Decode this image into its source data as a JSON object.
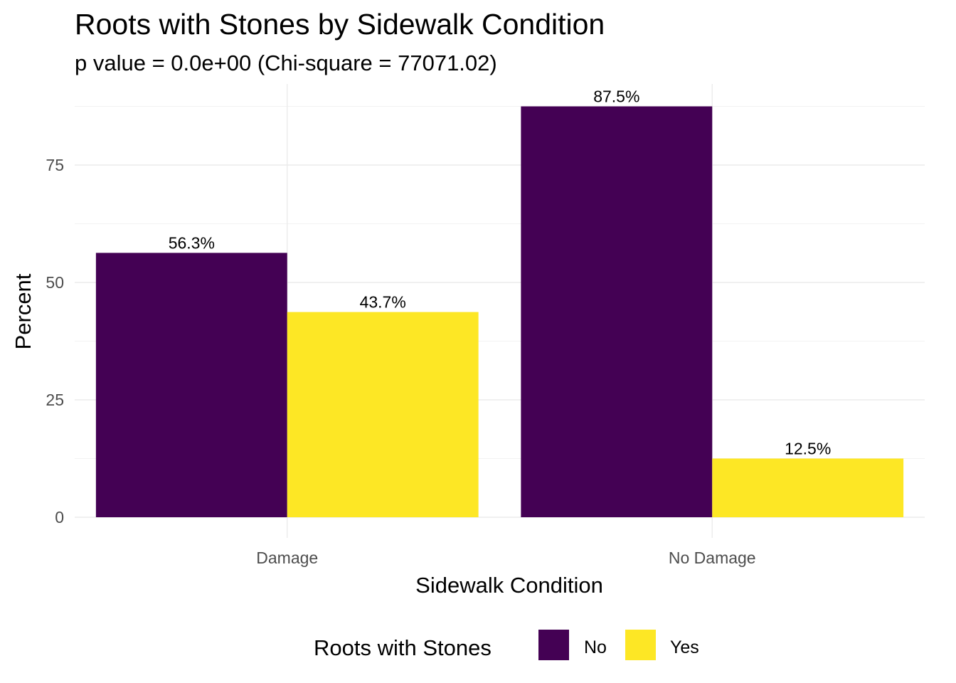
{
  "chart_data": {
    "type": "bar",
    "title": "Roots with Stones by Sidewalk Condition",
    "subtitle": "p value = 0.0e+00 (Chi-square = 77071.02)",
    "xlabel": "Sidewalk Condition",
    "ylabel": "Percent",
    "categories": [
      "Damage",
      "No Damage"
    ],
    "series": [
      {
        "name": "No",
        "color": "#440154",
        "values": [
          56.3,
          87.5
        ],
        "labels": [
          "56.3%",
          "87.5%"
        ]
      },
      {
        "name": "Yes",
        "color": "#FDE725",
        "values": [
          43.7,
          12.5
        ],
        "labels": [
          "43.7%",
          "12.5%"
        ]
      }
    ],
    "yticks": [
      0,
      25,
      50,
      75
    ],
    "ylim": [
      0,
      91.9
    ],
    "grid": true,
    "legend": {
      "title": "Roots with Stones",
      "position": "bottom"
    }
  }
}
